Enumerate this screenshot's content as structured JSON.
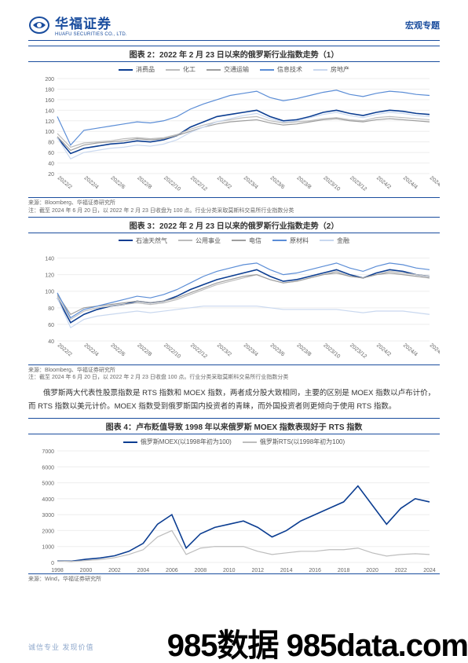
{
  "header": {
    "logo_cn": "华福证券",
    "logo_en": "HUAFU SECURITIES CO., LTD.",
    "right": "宏观专题",
    "logo_color": "#1a4d9e"
  },
  "chart2": {
    "title": "图表 2：2022 年 2 月 23 日以来的俄罗斯行业指数走势（1）",
    "type": "line",
    "height": 155,
    "legend": [
      {
        "label": "消费品",
        "color": "#0b3d91"
      },
      {
        "label": "化工",
        "color": "#bdbdbd"
      },
      {
        "label": "交通运输",
        "color": "#9e9e9e"
      },
      {
        "label": "信息技术",
        "color": "#5b8dd6"
      },
      {
        "label": "房地产",
        "color": "#c9d8ef"
      }
    ],
    "ylim": [
      20,
      200
    ],
    "ytick_step": 20,
    "xticks": [
      "2022/2",
      "2022/4",
      "2022/6",
      "2022/8",
      "2022/10",
      "2022/12",
      "2023/2",
      "2023/4",
      "2023/6",
      "2023/8",
      "2023/10",
      "2023/12",
      "2024/2",
      "2024/4",
      "2024/6"
    ],
    "grid_color": "#eeeeee",
    "series": {
      "消费品": [
        88,
        58,
        68,
        72,
        76,
        78,
        82,
        80,
        84,
        92,
        108,
        118,
        128,
        132,
        136,
        140,
        128,
        120,
        122,
        128,
        136,
        140,
        134,
        130,
        136,
        140,
        138,
        134,
        132
      ],
      "化工": [
        96,
        70,
        78,
        80,
        82,
        86,
        88,
        86,
        88,
        94,
        104,
        112,
        118,
        122,
        126,
        128,
        120,
        116,
        118,
        120,
        124,
        126,
        122,
        120,
        126,
        128,
        126,
        124,
        122
      ],
      "交通运输": [
        90,
        64,
        74,
        78,
        80,
        82,
        86,
        84,
        86,
        92,
        100,
        108,
        114,
        118,
        120,
        122,
        116,
        112,
        114,
        118,
        122,
        124,
        120,
        118,
        122,
        124,
        122,
        120,
        118
      ],
      "信息技术": [
        128,
        74,
        102,
        106,
        110,
        114,
        118,
        116,
        120,
        128,
        142,
        152,
        160,
        168,
        172,
        176,
        164,
        158,
        162,
        168,
        174,
        178,
        170,
        166,
        172,
        176,
        174,
        170,
        168
      ],
      "房地产": [
        88,
        48,
        60,
        64,
        68,
        70,
        74,
        72,
        76,
        84,
        98,
        108,
        118,
        124,
        130,
        134,
        124,
        118,
        120,
        126,
        132,
        136,
        130,
        126,
        132,
        136,
        134,
        130,
        128
      ]
    },
    "source1": "来源：Bloomberg、华福证券研究所",
    "source2": "注：截至 2024 年 6 月 20 日，以 2022 年 2 月 23 日收盘为 100 点。行业分类采取莫斯科交易所行业指数分类"
  },
  "chart3": {
    "title": "图表 3：2022 年 2 月 23 日以来的俄罗斯行业指数走势（2）",
    "type": "line",
    "height": 150,
    "legend": [
      {
        "label": "石油天然气",
        "color": "#0b3d91"
      },
      {
        "label": "公用事业",
        "color": "#bdbdbd"
      },
      {
        "label": "电信",
        "color": "#9e9e9e"
      },
      {
        "label": "原材料",
        "color": "#5b8dd6"
      },
      {
        "label": "金融",
        "color": "#c9d8ef"
      }
    ],
    "ylim": [
      40,
      150
    ],
    "ytick_step": 20,
    "xticks": [
      "2022/2",
      "2022/4",
      "2022/6",
      "2022/8",
      "2022/10",
      "2022/12",
      "2023/2",
      "2023/4",
      "2023/6",
      "2023/8",
      "2023/10",
      "2023/12",
      "2024/2",
      "2024/4",
      "2024/6"
    ],
    "grid_color": "#eeeeee",
    "series": {
      "石油天然气": [
        92,
        62,
        72,
        78,
        82,
        84,
        88,
        86,
        88,
        94,
        102,
        108,
        114,
        118,
        122,
        126,
        118,
        112,
        114,
        118,
        122,
        126,
        120,
        116,
        122,
        126,
        124,
        120,
        118
      ],
      "公用事业": [
        94,
        66,
        76,
        80,
        82,
        84,
        86,
        84,
        86,
        90,
        96,
        102,
        108,
        112,
        116,
        120,
        114,
        110,
        112,
        116,
        120,
        124,
        118,
        116,
        120,
        124,
        122,
        120,
        118
      ],
      "电信": [
        96,
        72,
        80,
        82,
        84,
        86,
        88,
        86,
        88,
        92,
        98,
        104,
        110,
        114,
        118,
        120,
        114,
        110,
        112,
        116,
        120,
        122,
        118,
        116,
        120,
        122,
        120,
        118,
        116
      ],
      "原材料": [
        98,
        68,
        78,
        82,
        86,
        90,
        94,
        92,
        96,
        102,
        110,
        118,
        124,
        128,
        132,
        134,
        126,
        120,
        122,
        126,
        130,
        134,
        128,
        124,
        130,
        134,
        132,
        128,
        126
      ],
      "金融": [
        92,
        56,
        66,
        70,
        72,
        74,
        76,
        74,
        76,
        78,
        80,
        82,
        82,
        82,
        82,
        82,
        80,
        78,
        78,
        78,
        78,
        78,
        76,
        74,
        76,
        76,
        76,
        74,
        72
      ]
    },
    "source1": "来源：Bloomberg、华福证券研究所",
    "source2": "注：截至 2024 年 6 月 20 日，以 2022 年 2 月 23 日收盘 100 点。行业分类采取莫斯科交易所行业指数分类"
  },
  "para": "俄罗斯两大代表性股票指数是 RTS 指数和 MOEX 指数，两者成分股大致相同，主要的区别是 MOEX 指数以卢布计价，而 RTS 指数以美元计价。MOEX 指数受到俄罗斯国内投资者的青睐，而外国投资者则更倾向于使用 RTS 指数。",
  "chart4": {
    "title": "图表 4：卢布贬值导致 1998 年以来俄罗斯 MOEX 指数表现好于 RTS 指数",
    "type": "line",
    "height": 160,
    "legend": [
      {
        "label": "俄罗斯MOEX(以1998年初为100)",
        "color": "#0b3d91"
      },
      {
        "label": "俄罗斯RTS(以1998年初为100)",
        "color": "#bdbdbd"
      }
    ],
    "ylim": [
      0,
      7000
    ],
    "ytick_step": 1000,
    "xticks": [
      "1998",
      "2000",
      "2002",
      "2004",
      "2006",
      "2008",
      "2010",
      "2012",
      "2014",
      "2016",
      "2018",
      "2020",
      "2022",
      "2024"
    ],
    "grid_color": "#eeeeee",
    "series": {
      "MOEX": [
        100,
        80,
        200,
        280,
        420,
        700,
        1200,
        2400,
        3000,
        900,
        1800,
        2200,
        2400,
        2600,
        2200,
        1600,
        2000,
        2600,
        3000,
        3400,
        3800,
        4800,
        3600,
        2400,
        3400,
        4000,
        3800
      ],
      "RTS": [
        100,
        60,
        120,
        180,
        300,
        500,
        800,
        1600,
        2000,
        500,
        900,
        1000,
        1000,
        1000,
        700,
        500,
        600,
        700,
        700,
        800,
        800,
        900,
        600,
        400,
        500,
        550,
        500
      ]
    },
    "source1": "来源：Wind，华福证券研究所",
    "source2": ""
  },
  "footer": "诚信专业  发现价值",
  "watermark": "985数据 985data.com"
}
